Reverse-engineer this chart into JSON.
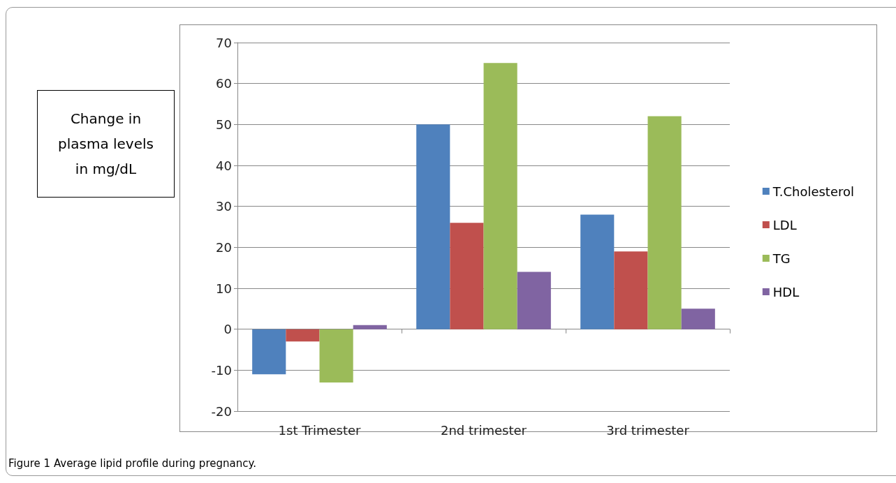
{
  "chart_data": {
    "type": "bar",
    "ylabel": "Change in plasma levels in mg/dL",
    "annotations": [
      "Figure 1 Average lipid profile during pregnancy."
    ],
    "categories": [
      "1st Trimester",
      "2nd trimester",
      "3rd trimester"
    ],
    "series": [
      {
        "name": "T.Cholesterol",
        "color": "#4f81bd",
        "values": [
          -11,
          50,
          28
        ]
      },
      {
        "name": "LDL",
        "color": "#c0504d",
        "values": [
          -3,
          26,
          19
        ]
      },
      {
        "name": "TG",
        "color": "#9bbb59",
        "values": [
          -13,
          65,
          52
        ]
      },
      {
        "name": "HDL",
        "color": "#8064a2",
        "values": [
          1,
          14,
          5
        ]
      }
    ],
    "ylim": [
      -20,
      70
    ],
    "yticks": [
      -20,
      -10,
      0,
      10,
      20,
      30,
      40,
      50,
      60,
      70
    ],
    "grid": "y",
    "legend": "right"
  }
}
